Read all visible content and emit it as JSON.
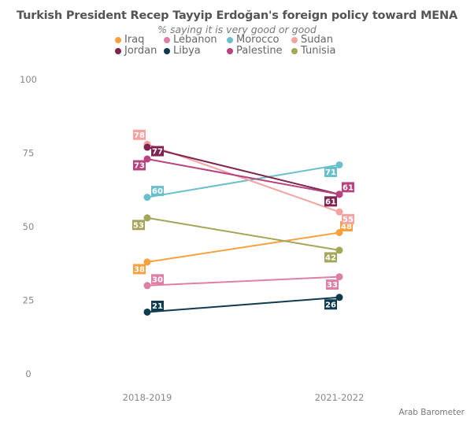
{
  "chart_data": {
    "type": "line",
    "title": "Turkish President Recep Tayyip Erdoğan's foreign policy toward MENA",
    "subtitle": "% saying it is very good or good",
    "x": [
      "2018-2019",
      "2021-2022"
    ],
    "xlabel": "",
    "ylabel": "",
    "ylim": [
      0,
      100
    ],
    "yticks": [
      "0",
      "25",
      "50",
      "75",
      "100"
    ],
    "grid": false,
    "legend_position": "top-center",
    "caption": "Arab Barometer",
    "series": [
      {
        "name": "Iraq",
        "color": "#F9A03F",
        "values": [
          38,
          48
        ]
      },
      {
        "name": "Lebanon",
        "color": "#DE7FA8",
        "values": [
          30,
          33
        ]
      },
      {
        "name": "Morocco",
        "color": "#6BBFCC",
        "values": [
          60,
          71
        ]
      },
      {
        "name": "Sudan",
        "color": "#F4A3A0",
        "values": [
          78,
          55
        ]
      },
      {
        "name": "Jordan",
        "color": "#7D2450",
        "values": [
          77,
          61
        ]
      },
      {
        "name": "Libya",
        "color": "#0E3B4F",
        "values": [
          21,
          26
        ]
      },
      {
        "name": "Palestine",
        "color": "#B8447F",
        "values": [
          73,
          61
        ]
      },
      {
        "name": "Tunisia",
        "color": "#A4A559",
        "values": [
          53,
          42
        ]
      }
    ],
    "legend_rows": [
      [
        "Iraq",
        "Lebanon",
        "Morocco",
        "Sudan"
      ],
      [
        "Jordan",
        "Libya",
        "Palestine",
        "Tunisia"
      ]
    ]
  }
}
